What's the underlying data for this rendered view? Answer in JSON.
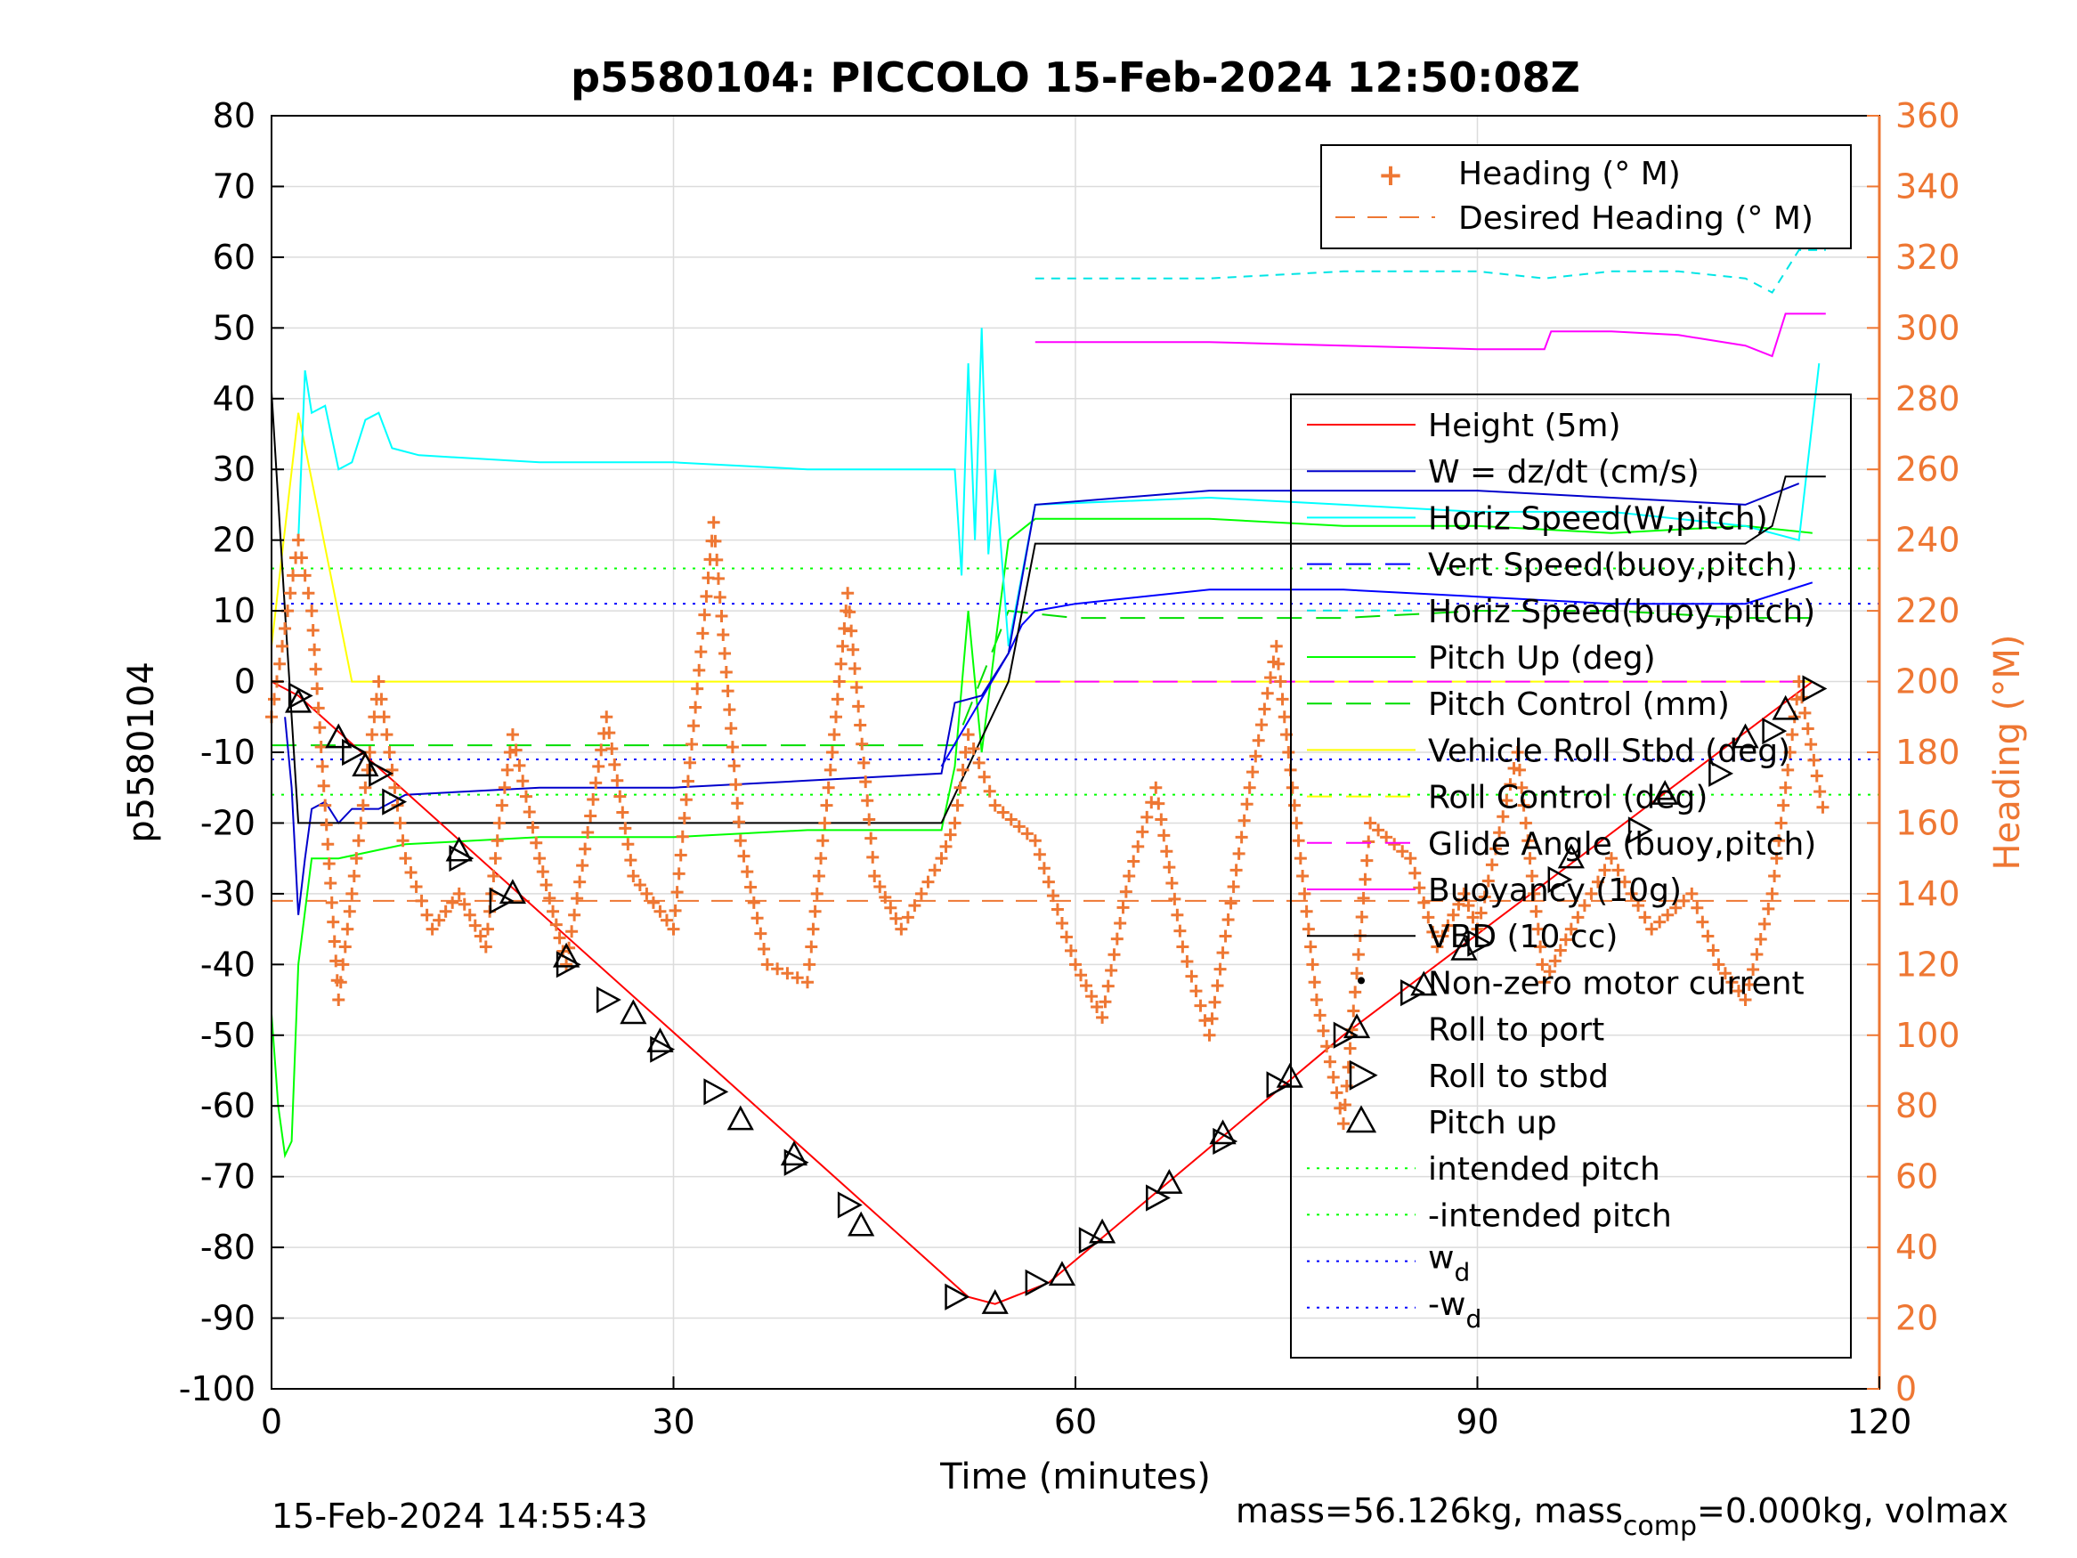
{
  "chart_data": {
    "type": "line",
    "title": "p5580104: PICCOLO 15-Feb-2024 12:50:08Z",
    "xlabel": "Time (minutes)",
    "ylabel": "p5580104",
    "ylabel_right": "Heading (°M)",
    "xlim": [
      0,
      120
    ],
    "ylim": [
      -100,
      80
    ],
    "ylim_right": [
      0,
      360
    ],
    "x_ticks": [
      "0",
      "30",
      "60",
      "90",
      "120"
    ],
    "y_ticks": [
      "80",
      "70",
      "60",
      "50",
      "40",
      "30",
      "20",
      "10",
      "0",
      "-10",
      "-20",
      "-30",
      "-40",
      "-50",
      "-60",
      "-70",
      "-80",
      "-90",
      "-100"
    ],
    "y_ticks_right": [
      "360",
      "340",
      "320",
      "300",
      "280",
      "260",
      "240",
      "220",
      "200",
      "180",
      "160",
      "140",
      "120",
      "100",
      "80",
      "60",
      "40",
      "20",
      "0"
    ],
    "grid": true,
    "legend_top": {
      "placement": "top-right",
      "entries": [
        "Heading (° M)",
        "Desired Heading (° M)"
      ]
    },
    "legend_main": {
      "placement": "right",
      "entries": [
        "Height (5m)",
        "W = dz/dt (cm/s)",
        "Horiz Speed(W,pitch)",
        "Vert Speed(buoy,pitch)",
        "Horiz Speed(buoy,pitch)",
        "Pitch Up (deg)",
        "Pitch Control (mm)",
        "Vehicle Roll Stbd (deg)",
        "Roll Control (deg)",
        "Glide Angle (buoy,pitch)",
        "Buoyancy (10g)",
        "VBD (10 cc)",
        "Non-zero motor current",
        "Roll to port",
        "Roll to stbd",
        "Pitch up",
        "intended pitch",
        "-intended pitch"
      ],
      "wd_label": "w",
      "wd_sub": "d",
      "neg_wd_label": "-w",
      "neg_wd_sub": "d"
    },
    "colors": {
      "height": "#ff0000",
      "w": "#0000cc",
      "horiz_w": "#00ffff",
      "vert_buoy": "#0000ff",
      "horiz_buoy": "#00e5e5",
      "pitch": "#00ff00",
      "pitch_ctrl": "#00dd00",
      "roll": "#ffff00",
      "roll_ctrl": "#ffff00",
      "glide": "#ff00ff",
      "buoyancy": "#ff00ff",
      "vbd": "#000000",
      "heading": "#ee7733",
      "intended": "#00ff00",
      "wd": "#0000ff"
    },
    "reference_lines": {
      "intended_pitch": 16,
      "neg_intended_pitch": -16,
      "w_d": 11,
      "neg_w_d": -11,
      "desired_heading_deg": 138
    },
    "series": {
      "height": [
        [
          0,
          0
        ],
        [
          2,
          -2
        ],
        [
          52,
          -87
        ],
        [
          54,
          -88
        ],
        [
          58,
          -85
        ],
        [
          80,
          -50
        ],
        [
          115,
          0
        ]
      ],
      "vbd": [
        [
          0,
          41
        ],
        [
          1,
          10
        ],
        [
          2,
          -20
        ],
        [
          50,
          -20
        ],
        [
          55,
          0
        ],
        [
          57,
          19.5
        ],
        [
          110,
          19.5
        ],
        [
          112,
          22
        ],
        [
          113,
          29
        ],
        [
          116,
          29
        ]
      ],
      "horiz_speed_w_pitch": [
        [
          2,
          20
        ],
        [
          2.5,
          44
        ],
        [
          3,
          38
        ],
        [
          4,
          39
        ],
        [
          5,
          30
        ],
        [
          6,
          31
        ],
        [
          7,
          37
        ],
        [
          8,
          38
        ],
        [
          9,
          33
        ],
        [
          11,
          32
        ],
        [
          20,
          31
        ],
        [
          30,
          31
        ],
        [
          40,
          30
        ],
        [
          50,
          30
        ],
        [
          51,
          30
        ],
        [
          51.5,
          15
        ],
        [
          52,
          45
        ],
        [
          52.5,
          20
        ],
        [
          53,
          50
        ],
        [
          53.5,
          18
        ],
        [
          54,
          30
        ],
        [
          55,
          5
        ],
        [
          57,
          25
        ],
        [
          70,
          26
        ],
        [
          80,
          25
        ],
        [
          90,
          24
        ],
        [
          100,
          24
        ],
        [
          110,
          22
        ],
        [
          114,
          20
        ],
        [
          115.5,
          45
        ]
      ],
      "w_dzdt": [
        [
          1,
          -5
        ],
        [
          1.5,
          -15
        ],
        [
          2,
          -33
        ],
        [
          2.5,
          -25
        ],
        [
          3,
          -18
        ],
        [
          4,
          -17
        ],
        [
          5,
          -20
        ],
        [
          6,
          -18
        ],
        [
          8,
          -18
        ],
        [
          10,
          -16
        ],
        [
          20,
          -15
        ],
        [
          30,
          -15
        ],
        [
          40,
          -14
        ],
        [
          50,
          -13
        ],
        [
          51,
          -3
        ],
        [
          53,
          -2
        ],
        [
          55,
          4
        ],
        [
          57,
          25
        ],
        [
          70,
          27
        ],
        [
          80,
          27
        ],
        [
          90,
          27
        ],
        [
          100,
          26
        ],
        [
          110,
          25
        ],
        [
          114,
          28
        ]
      ],
      "vert_speed_buoy_pitch": [
        [
          50,
          -12
        ],
        [
          55,
          4
        ],
        [
          56,
          8
        ],
        [
          57,
          10
        ],
        [
          60,
          11
        ],
        [
          70,
          13
        ],
        [
          80,
          13
        ],
        [
          90,
          12
        ],
        [
          100,
          11
        ],
        [
          110,
          11
        ],
        [
          115,
          14
        ]
      ],
      "horiz_speed_buoy_pitch": [
        [
          57,
          57
        ],
        [
          60,
          57
        ],
        [
          70,
          57
        ],
        [
          80,
          58
        ],
        [
          90,
          58
        ],
        [
          95,
          57
        ],
        [
          100,
          58
        ],
        [
          105,
          58
        ],
        [
          110,
          57
        ],
        [
          112,
          55
        ],
        [
          114,
          61
        ],
        [
          116,
          61
        ]
      ],
      "pitch_up": [
        [
          0,
          -47
        ],
        [
          0.5,
          -60
        ],
        [
          1,
          -67
        ],
        [
          1.5,
          -65
        ],
        [
          2,
          -40
        ],
        [
          3,
          -25
        ],
        [
          5,
          -25
        ],
        [
          10,
          -23
        ],
        [
          20,
          -22
        ],
        [
          30,
          -22
        ],
        [
          40,
          -21
        ],
        [
          50,
          -21
        ],
        [
          51,
          -12
        ],
        [
          52,
          10
        ],
        [
          53,
          -10
        ],
        [
          54,
          5
        ],
        [
          55,
          20
        ],
        [
          57,
          23
        ],
        [
          70,
          23
        ],
        [
          80,
          22
        ],
        [
          90,
          22
        ],
        [
          100,
          21
        ],
        [
          110,
          22
        ],
        [
          115,
          21
        ]
      ],
      "pitch_control": [
        [
          0,
          -9
        ],
        [
          50,
          -9
        ],
        [
          51,
          -9
        ],
        [
          55,
          10
        ],
        [
          60,
          9
        ],
        [
          70,
          9
        ],
        [
          80,
          9
        ],
        [
          90,
          10
        ],
        [
          100,
          10
        ],
        [
          110,
          9
        ],
        [
          115,
          9
        ]
      ],
      "roll_stbd": [
        [
          0,
          5
        ],
        [
          2,
          38
        ],
        [
          6,
          0
        ],
        [
          20,
          0
        ],
        [
          30,
          0
        ],
        [
          40,
          0
        ],
        [
          50,
          0
        ],
        [
          60,
          0
        ],
        [
          70,
          0
        ],
        [
          80,
          0
        ],
        [
          90,
          0
        ],
        [
          100,
          0
        ],
        [
          110,
          0
        ],
        [
          115,
          0
        ]
      ],
      "glide_angle": [
        [
          57,
          0
        ],
        [
          115,
          0
        ]
      ],
      "buoyancy": [
        [
          57,
          48
        ],
        [
          70,
          48
        ],
        [
          80,
          47.5
        ],
        [
          90,
          47
        ],
        [
          95,
          47
        ],
        [
          95.5,
          49.5
        ],
        [
          100,
          49.5
        ],
        [
          105,
          49
        ],
        [
          110,
          47.5
        ],
        [
          112,
          46
        ],
        [
          113,
          52
        ],
        [
          116,
          52
        ]
      ],
      "heading": [
        [
          0,
          190
        ],
        [
          2,
          240
        ],
        [
          3,
          220
        ],
        [
          5,
          110
        ],
        [
          8,
          200
        ],
        [
          10,
          150
        ],
        [
          12,
          130
        ],
        [
          14,
          140
        ],
        [
          16,
          125
        ],
        [
          17,
          160
        ],
        [
          18,
          185
        ],
        [
          20,
          150
        ],
        [
          21,
          135
        ],
        [
          22,
          120
        ],
        [
          25,
          190
        ],
        [
          27,
          145
        ],
        [
          30,
          130
        ],
        [
          33,
          245
        ],
        [
          35,
          155
        ],
        [
          37,
          120
        ],
        [
          40,
          115
        ],
        [
          42,
          185
        ],
        [
          43,
          225
        ],
        [
          45,
          145
        ],
        [
          47,
          130
        ],
        [
          50,
          150
        ],
        [
          51,
          160
        ],
        [
          52,
          185
        ],
        [
          54,
          165
        ],
        [
          57,
          155
        ],
        [
          60,
          120
        ],
        [
          62,
          105
        ],
        [
          64,
          145
        ],
        [
          66,
          170
        ],
        [
          68,
          125
        ],
        [
          70,
          100
        ],
        [
          73,
          170
        ],
        [
          75,
          210
        ],
        [
          78,
          110
        ],
        [
          80,
          75
        ],
        [
          82,
          160
        ],
        [
          85,
          150
        ],
        [
          87,
          125
        ],
        [
          89,
          140
        ],
        [
          90,
          130
        ],
        [
          93,
          180
        ],
        [
          95,
          115
        ],
        [
          97,
          130
        ],
        [
          100,
          150
        ],
        [
          103,
          130
        ],
        [
          106,
          140
        ],
        [
          108,
          120
        ],
        [
          110,
          110
        ],
        [
          112,
          140
        ],
        [
          114,
          200
        ],
        [
          116,
          160
        ]
      ],
      "roll_to_stbd_markers": [
        [
          2,
          -2
        ],
        [
          6,
          -10
        ],
        [
          8,
          -13
        ],
        [
          9,
          -17
        ],
        [
          14,
          -25
        ],
        [
          17,
          -31
        ],
        [
          22,
          -40
        ],
        [
          25,
          -45
        ],
        [
          29,
          -52
        ],
        [
          33,
          -58
        ],
        [
          39,
          -68
        ],
        [
          43,
          -74
        ],
        [
          51,
          -87
        ],
        [
          57,
          -85
        ],
        [
          61,
          -79
        ],
        [
          66,
          -73
        ],
        [
          71,
          -65
        ],
        [
          75,
          -57
        ],
        [
          80,
          -50
        ],
        [
          85,
          -44
        ],
        [
          90,
          -37
        ],
        [
          96,
          -28
        ],
        [
          102,
          -21
        ],
        [
          108,
          -13
        ],
        [
          112,
          -7
        ],
        [
          115,
          -1
        ]
      ],
      "pitch_up_markers": [
        [
          2,
          -3
        ],
        [
          5,
          -8
        ],
        [
          7,
          -12
        ],
        [
          14,
          -24
        ],
        [
          18,
          -30
        ],
        [
          22,
          -39
        ],
        [
          27,
          -47
        ],
        [
          29,
          -51
        ],
        [
          35,
          -62
        ],
        [
          39,
          -67
        ],
        [
          44,
          -77
        ],
        [
          54,
          -88
        ],
        [
          59,
          -84
        ],
        [
          62,
          -78
        ],
        [
          67,
          -71
        ],
        [
          71,
          -64
        ],
        [
          76,
          -56
        ],
        [
          81,
          -49
        ],
        [
          86,
          -43
        ],
        [
          89,
          -38
        ],
        [
          97,
          -25
        ],
        [
          104,
          -16
        ],
        [
          110,
          -8
        ],
        [
          113,
          -4
        ]
      ]
    }
  },
  "footer": {
    "timestamp": "15-Feb-2024 14:55:43",
    "mass_prefix": "mass=56.126kg, mass",
    "mass_sub": "comp",
    "mass_suffix": "=0.000kg, volmax"
  }
}
